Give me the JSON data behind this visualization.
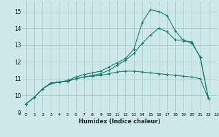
{
  "xlabel": "Humidex (Indice chaleur)",
  "background_color": "#cce8e8",
  "grid_color": "#aacccc",
  "line_color": "#1a7a6e",
  "xlim": [
    -0.5,
    23
  ],
  "ylim": [
    9,
    15.6
  ],
  "xticks": [
    0,
    1,
    2,
    3,
    4,
    5,
    6,
    7,
    8,
    9,
    10,
    11,
    12,
    13,
    14,
    15,
    16,
    17,
    18,
    19,
    20,
    21,
    22,
    23
  ],
  "yticks": [
    9,
    10,
    11,
    12,
    13,
    14,
    15
  ],
  "curve1_x": [
    0,
    1,
    2,
    3,
    4,
    5,
    6,
    7,
    8,
    9,
    10,
    11,
    12,
    13,
    14,
    15,
    16,
    17,
    18,
    19,
    20,
    21,
    22
  ],
  "curve1_y": [
    9.5,
    9.9,
    10.4,
    10.75,
    10.8,
    10.85,
    11.0,
    11.1,
    11.2,
    11.3,
    11.5,
    11.8,
    12.1,
    12.5,
    13.1,
    13.6,
    14.0,
    13.8,
    13.3,
    13.3,
    13.1,
    12.3,
    9.8
  ],
  "curve2_x": [
    0,
    1,
    2,
    3,
    4,
    5,
    6,
    7,
    8,
    9,
    10,
    11,
    12,
    13,
    14,
    15,
    16,
    17,
    18,
    19,
    20,
    21,
    22
  ],
  "curve2_y": [
    9.5,
    9.9,
    10.4,
    10.7,
    10.8,
    10.9,
    11.1,
    11.25,
    11.35,
    11.45,
    11.7,
    11.95,
    12.2,
    12.75,
    14.35,
    15.1,
    15.0,
    14.75,
    13.85,
    13.25,
    13.2,
    12.25,
    9.8
  ],
  "curve3_x": [
    0,
    1,
    2,
    3,
    4,
    5,
    6,
    7,
    8,
    9,
    10,
    11,
    12,
    13,
    14,
    15,
    16,
    17,
    18,
    19,
    20,
    21,
    22
  ],
  "curve3_y": [
    9.5,
    9.9,
    10.4,
    10.75,
    10.8,
    10.85,
    11.0,
    11.1,
    11.15,
    11.2,
    11.3,
    11.4,
    11.45,
    11.45,
    11.4,
    11.35,
    11.3,
    11.25,
    11.2,
    11.15,
    11.1,
    11.0,
    9.8
  ]
}
